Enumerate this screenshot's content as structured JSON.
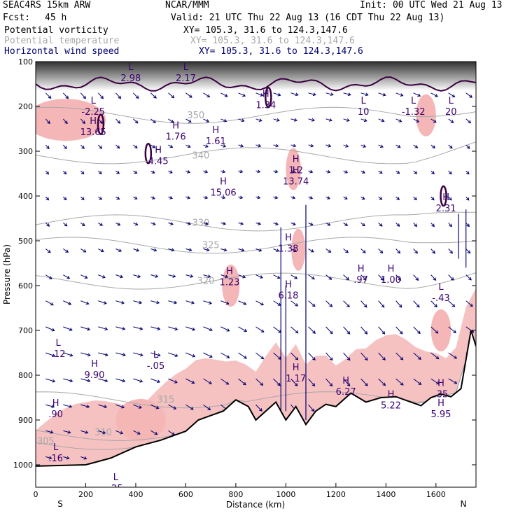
{
  "header": {
    "model": "SEAC4RS 15km ARW",
    "agency": "NCAR/MMM",
    "init": "Init: 00 UTC Wed 21 Aug 13",
    "fcst_label": "Fcst:",
    "fcst_value": "45 h",
    "valid": "Valid: 21 UTC Thu 22 Aug 13 (16 CDT Thu 22 Aug 13)",
    "fields": [
      {
        "name": "Potential vorticity",
        "xy": "XY= 105.3, 31.6 to 124.3,147.6",
        "color": "#000000"
      },
      {
        "name": "Potential temperature",
        "xy": "XY= 105.3, 31.6 to 124.3,147.6",
        "color": "#a8a8a8"
      },
      {
        "name": "Horizontal wind speed",
        "xy": "XY= 105.3, 31.6 to 124.3,147.6",
        "color": "#000070"
      }
    ]
  },
  "chart_data": {
    "type": "cross-section",
    "xlabel": "Distance (km)",
    "ylabel": "Pressure (hPa)",
    "xlim": [
      0,
      1760
    ],
    "ylim": [
      1050,
      100
    ],
    "x_ticks": [
      0,
      200,
      400,
      600,
      800,
      1000,
      1200,
      1400,
      1600
    ],
    "y_ticks": [
      100,
      200,
      300,
      400,
      500,
      600,
      700,
      800,
      900,
      1000
    ],
    "end_labels": {
      "left": "S",
      "right": "N"
    },
    "colors": {
      "pv_fill": "#f4b6b6",
      "theta": "#a8a8a8",
      "wind": "#000070",
      "ground": "#000000",
      "pv_contour": "#3a0040"
    },
    "terrain_surface_hPa": [
      [
        0,
        1003
      ],
      [
        200,
        1000
      ],
      [
        300,
        985
      ],
      [
        400,
        960
      ],
      [
        500,
        945
      ],
      [
        600,
        925
      ],
      [
        650,
        900
      ],
      [
        700,
        890
      ],
      [
        750,
        880
      ],
      [
        800,
        855
      ],
      [
        850,
        870
      ],
      [
        880,
        900
      ],
      [
        920,
        880
      ],
      [
        960,
        860
      ],
      [
        1000,
        900
      ],
      [
        1040,
        870
      ],
      [
        1080,
        910
      ],
      [
        1120,
        880
      ],
      [
        1160,
        865
      ],
      [
        1200,
        870
      ],
      [
        1260,
        840
      ],
      [
        1320,
        860
      ],
      [
        1380,
        850
      ],
      [
        1440,
        848
      ],
      [
        1500,
        860
      ],
      [
        1540,
        868
      ],
      [
        1580,
        850
      ],
      [
        1620,
        842
      ],
      [
        1660,
        848
      ],
      [
        1700,
        830
      ],
      [
        1740,
        700
      ],
      [
        1760,
        735
      ]
    ],
    "theta_contours": [
      {
        "label": "305",
        "x": 40,
        "y": 948
      },
      {
        "label": "310",
        "x": 270,
        "y": 928
      },
      {
        "label": "315",
        "x": 520,
        "y": 855
      },
      {
        "label": "320",
        "x": 680,
        "y": 590
      },
      {
        "label": "325",
        "x": 700,
        "y": 510
      },
      {
        "label": "330",
        "x": 660,
        "y": 460
      },
      {
        "label": "340",
        "x": 660,
        "y": 310
      },
      {
        "label": "350",
        "x": 640,
        "y": 220
      }
    ],
    "extrema": [
      {
        "kind": "L",
        "value": "-2.25",
        "x": 230,
        "y": 205
      },
      {
        "kind": "H",
        "value": "13.65",
        "x": 230,
        "y": 250
      },
      {
        "kind": "L",
        "value": "2.98",
        "x": 380,
        "y": 130
      },
      {
        "kind": "L",
        "value": "2.17",
        "x": 600,
        "y": 130
      },
      {
        "kind": "H",
        "value": "1.76",
        "x": 560,
        "y": 260
      },
      {
        "kind": "H",
        "value": "1.61",
        "x": 720,
        "y": 270
      },
      {
        "kind": "H",
        "value": "4.45",
        "x": 490,
        "y": 315
      },
      {
        "kind": "H",
        "value": "15.06",
        "x": 750,
        "y": 385
      },
      {
        "kind": "H",
        "value": "1.2",
        "x": 1040,
        "y": 335
      },
      {
        "kind": "H",
        "value": "13.74",
        "x": 1040,
        "y": 360
      },
      {
        "kind": "H",
        "value": "1.34",
        "x": 920,
        "y": 190
      },
      {
        "kind": "L",
        "value": "10",
        "x": 1310,
        "y": 205
      },
      {
        "kind": "L",
        "value": "-1.32",
        "x": 1510,
        "y": 205
      },
      {
        "kind": "L",
        "value": "20",
        "x": 1660,
        "y": 205
      },
      {
        "kind": "H",
        "value": "2.31",
        "x": 1640,
        "y": 420
      },
      {
        "kind": "H",
        "value": "1.38",
        "x": 1010,
        "y": 510
      },
      {
        "kind": "H",
        "value": ".97",
        "x": 1300,
        "y": 580
      },
      {
        "kind": "H",
        "value": "1.00",
        "x": 1420,
        "y": 580
      },
      {
        "kind": "H",
        "value": "1.23",
        "x": 775,
        "y": 585
      },
      {
        "kind": "H",
        "value": "6.18",
        "x": 1010,
        "y": 615
      },
      {
        "kind": "L",
        "value": "-.43",
        "x": 1620,
        "y": 620
      },
      {
        "kind": "L",
        "value": ".12",
        "x": 90,
        "y": 745
      },
      {
        "kind": "H",
        "value": "9.90",
        "x": 235,
        "y": 792
      },
      {
        "kind": "L",
        "value": "-.05",
        "x": 480,
        "y": 772
      },
      {
        "kind": "H",
        "value": "1.17",
        "x": 1040,
        "y": 800
      },
      {
        "kind": "H",
        "value": "6.27",
        "x": 1240,
        "y": 830
      },
      {
        "kind": "H",
        "value": "5.22",
        "x": 1420,
        "y": 860
      },
      {
        "kind": "H",
        "value": ".35",
        "x": 1620,
        "y": 835
      },
      {
        "kind": "H",
        "value": "5.95",
        "x": 1620,
        "y": 880
      },
      {
        "kind": "H",
        "value": ".90",
        "x": 80,
        "y": 880
      },
      {
        "kind": "L",
        "value": ".16",
        "x": 80,
        "y": 978
      },
      {
        "kind": "L",
        "value": ".25",
        "x": 320,
        "y": 1045
      }
    ]
  }
}
